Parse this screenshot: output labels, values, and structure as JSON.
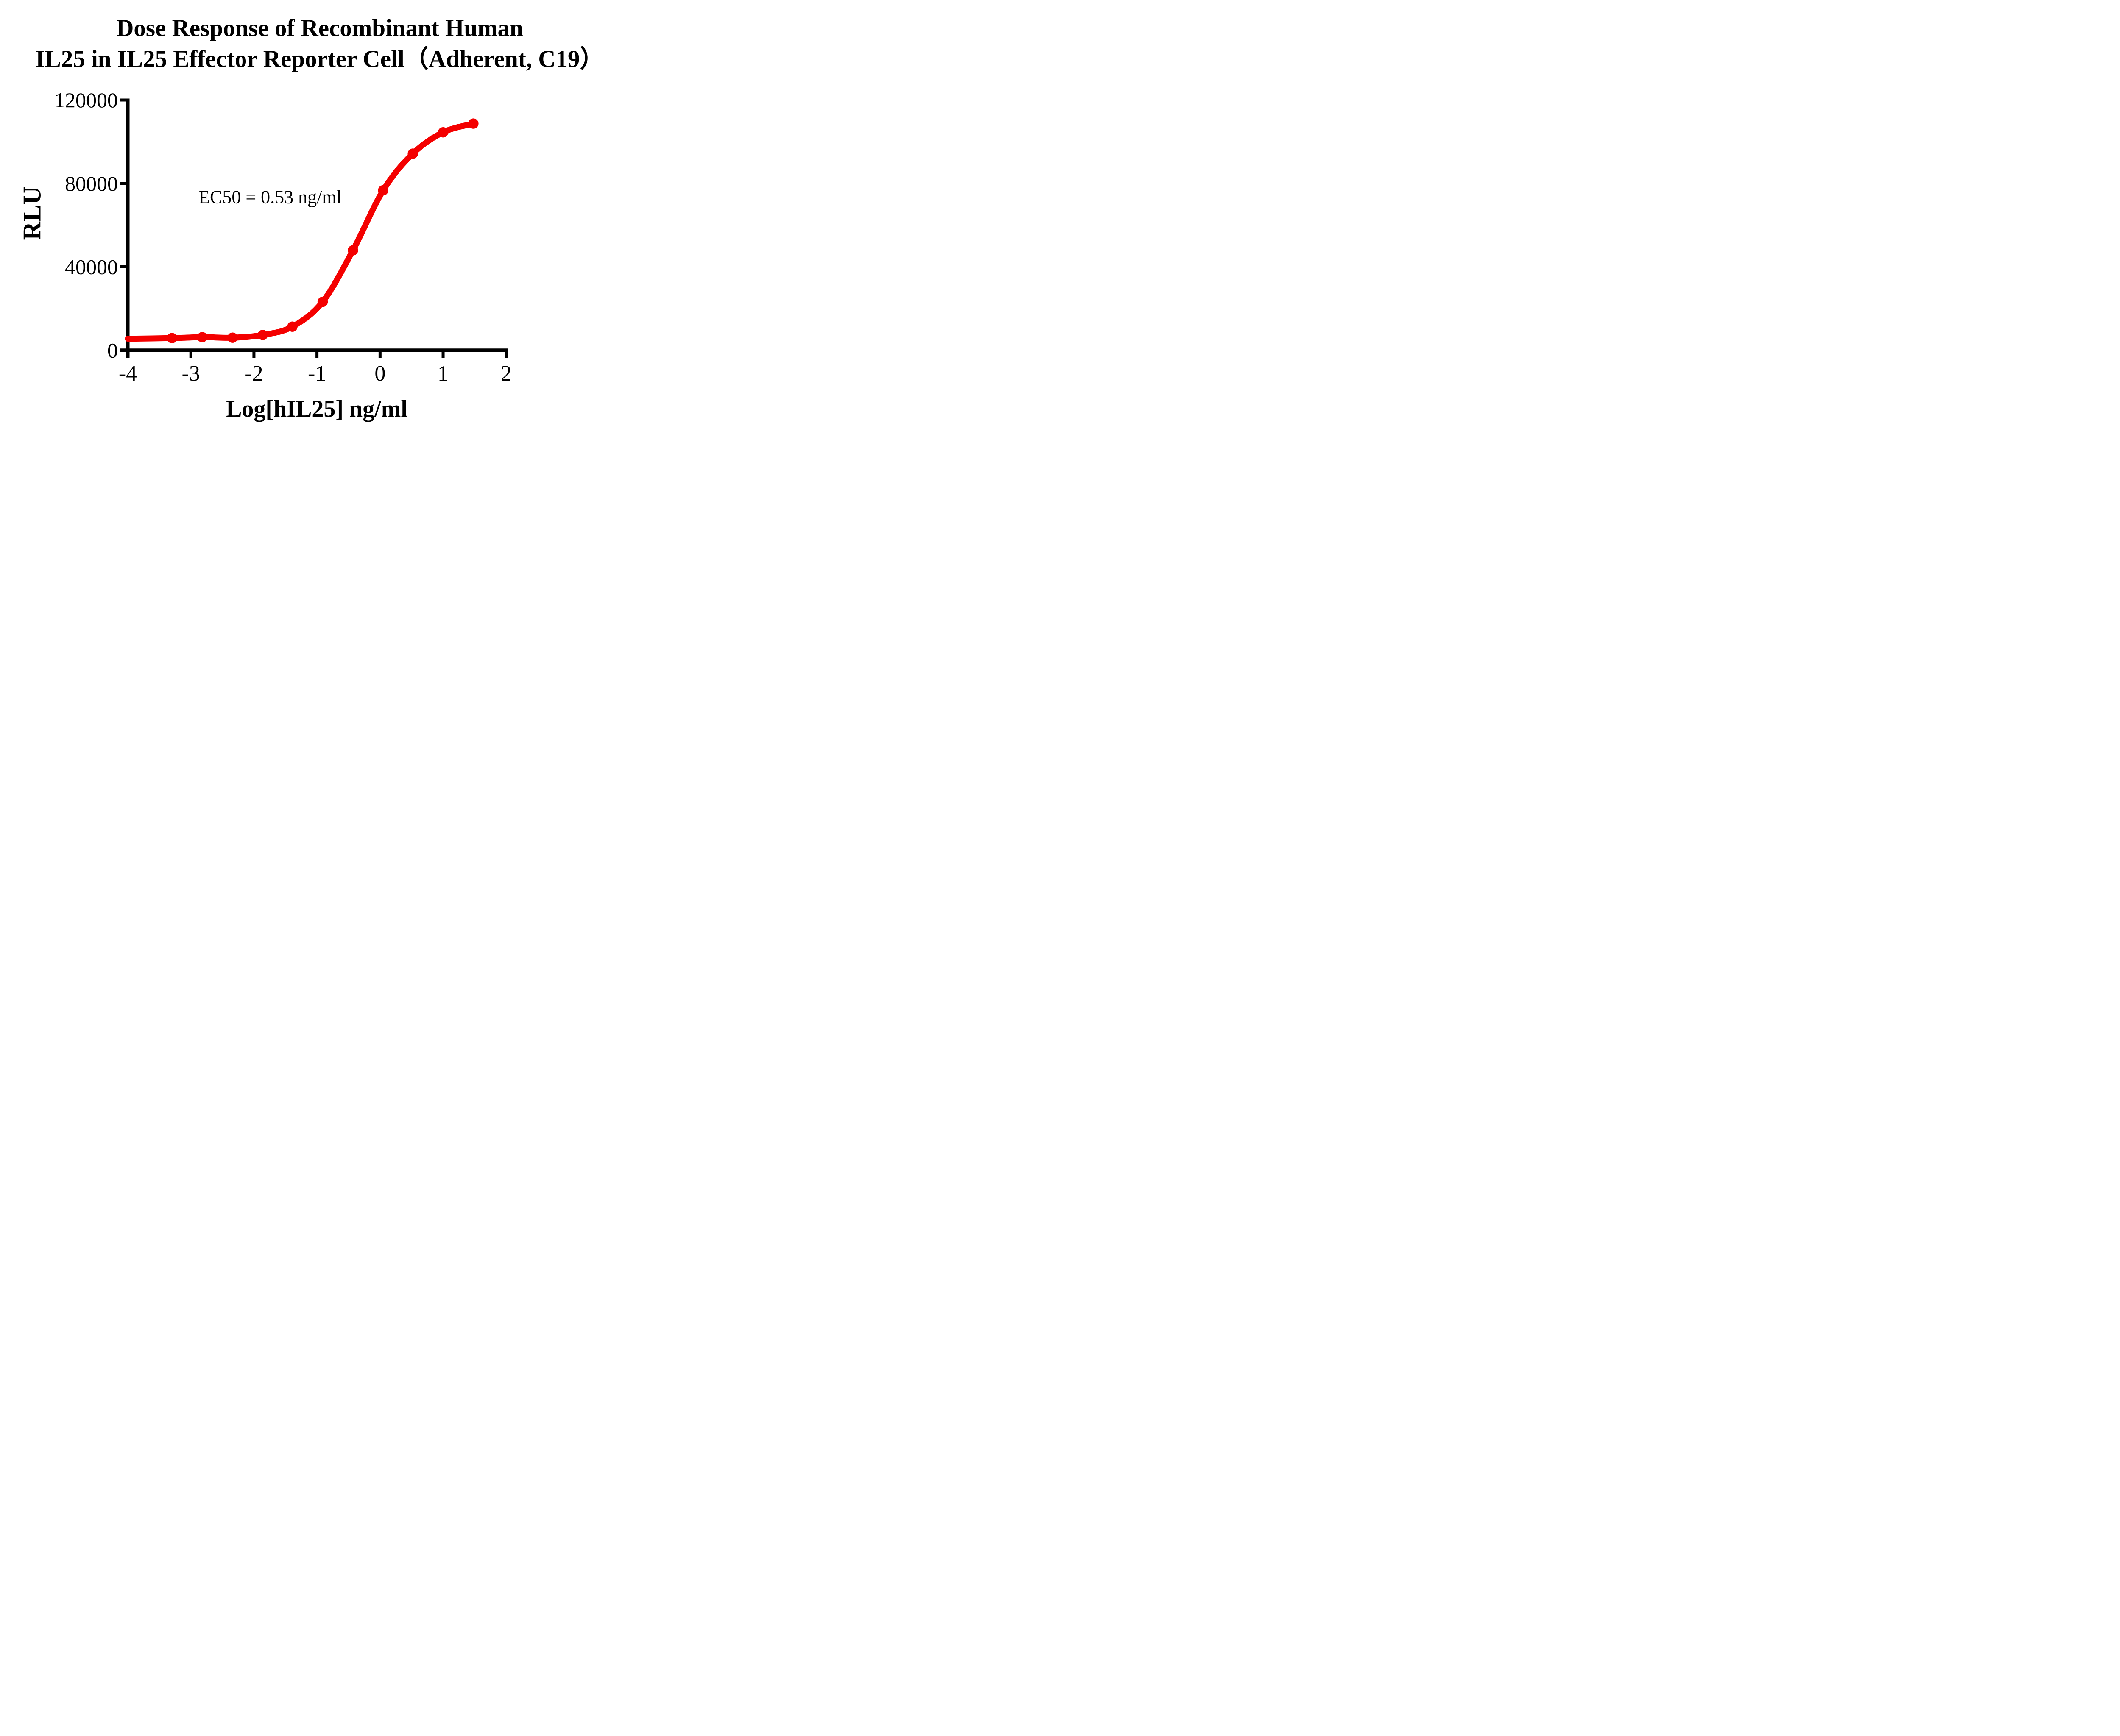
{
  "title": {
    "line1": "Dose Response of Recombinant Human",
    "line2": "IL25 in IL25 Effector Reporter Cell（Adherent, C19）"
  },
  "annotation": {
    "ec50_text": "EC50 = 0.53 ng/ml",
    "ec50_value_ng_ml": 0.53
  },
  "axes": {
    "y_label": "RLU",
    "x_label": "Log[hIL25] ng/ml"
  },
  "colors": {
    "curve": "#F40000",
    "axis": "#000000",
    "background": "#FFFFFF"
  },
  "chart_data": {
    "type": "line",
    "title": "Dose Response of Recombinant Human IL25 in IL25 Effector Reporter Cell（Adherent, C19）",
    "xlabel": "Log[hIL25] ng/ml",
    "ylabel": "RLU",
    "xlim": [
      -4,
      2
    ],
    "ylim": [
      0,
      120000
    ],
    "x_ticks": [
      -4,
      -3,
      -2,
      -1,
      0,
      1,
      2
    ],
    "x_tick_labels": [
      "-4",
      "-3",
      "-2",
      "-1",
      "0",
      "1",
      "2"
    ],
    "y_ticks": [
      0,
      40000,
      80000,
      120000
    ],
    "y_tick_labels": [
      "0",
      "40000",
      "80000",
      "120000"
    ],
    "grid": false,
    "legend": "none",
    "curve_color": "#F40000",
    "curve_start": [
      -4.0,
      5500
    ],
    "points": [
      [
        -3.3,
        5800
      ],
      [
        -2.82,
        6250
      ],
      [
        -2.34,
        6000
      ],
      [
        -1.86,
        7300
      ],
      [
        -1.39,
        11300
      ],
      [
        -0.91,
        23200
      ],
      [
        -0.43,
        47900
      ],
      [
        0.05,
        76700
      ],
      [
        0.52,
        94300
      ],
      [
        1.0,
        104500
      ],
      [
        1.48,
        108700
      ]
    ]
  }
}
